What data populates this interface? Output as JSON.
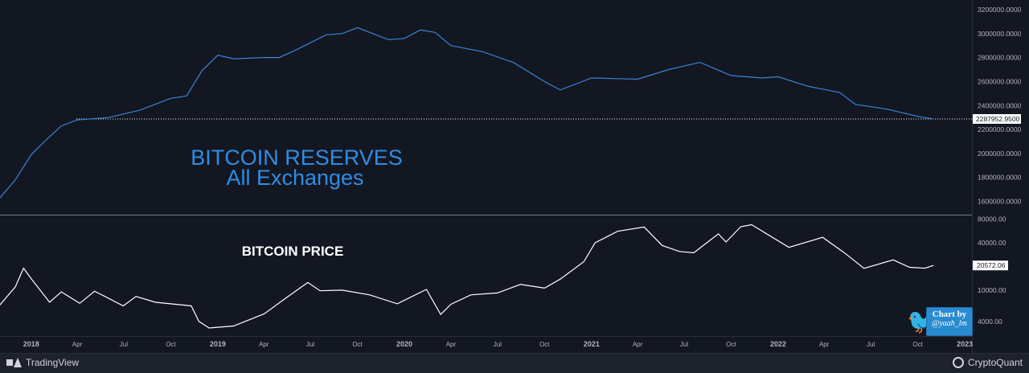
{
  "chart_data": [
    {
      "type": "line",
      "title": "BITCOIN RESERVES",
      "subtitle": "All Exchanges",
      "ylim": [
        1550000,
        3200000
      ],
      "y_ticks": [
        "3200000.0000",
        "3000000.0000",
        "2800000.0000",
        "2600000.0000",
        "2400000.0000",
        "2200000.0000",
        "2000000.0000",
        "1800000.0000",
        "1600000.0000"
      ],
      "last_value_label": "2287952.9500",
      "last_value": 2287952.95,
      "color": "#3b82d6",
      "x": [
        "2017-11-01",
        "2017-12-01",
        "2018-01-01",
        "2018-02-01",
        "2018-03-01",
        "2018-04-01",
        "2018-06-01",
        "2018-08-01",
        "2018-10-01",
        "2018-11-01",
        "2018-12-01",
        "2019-01-01",
        "2019-02-01",
        "2019-04-01",
        "2019-05-01",
        "2019-06-01",
        "2019-08-01",
        "2019-09-01",
        "2019-10-01",
        "2019-12-01",
        "2020-01-01",
        "2020-02-01",
        "2020-03-01",
        "2020-04-01",
        "2020-06-01",
        "2020-08-01",
        "2020-10-01",
        "2020-11-01",
        "2021-01-01",
        "2021-04-01",
        "2021-06-01",
        "2021-08-01",
        "2021-10-01",
        "2021-12-01",
        "2022-01-01",
        "2022-03-01",
        "2022-05-01",
        "2022-06-01",
        "2022-08-01",
        "2022-10-01",
        "2022-11-01"
      ],
      "values": [
        1630000,
        1780000,
        1990000,
        2120000,
        2230000,
        2280000,
        2300000,
        2360000,
        2460000,
        2480000,
        2690000,
        2820000,
        2790000,
        2800000,
        2800000,
        2860000,
        2990000,
        3000000,
        3050000,
        2950000,
        2960000,
        3030000,
        3010000,
        2900000,
        2850000,
        2760000,
        2600000,
        2530000,
        2630000,
        2620000,
        2700000,
        2760000,
        2650000,
        2630000,
        2640000,
        2560000,
        2510000,
        2410000,
        2370000,
        2310000,
        2288000
      ]
    },
    {
      "type": "line",
      "title": "BITCOIN PRICE",
      "y_scale": "log",
      "ylim": [
        3000,
        85000
      ],
      "y_ticks": [
        80000,
        40000,
        10000,
        4000
      ],
      "y_tick_labels": [
        "80000.00",
        "40000.00",
        "10000.00",
        "4000.00"
      ],
      "last_value_label": "20572.06",
      "last_value": 20572.06,
      "color": "#ffffff",
      "x": [
        "2017-11-01",
        "2017-12-01",
        "2017-12-17",
        "2018-01-01",
        "2018-02-06",
        "2018-03-01",
        "2018-04-06",
        "2018-05-05",
        "2018-06-30",
        "2018-07-25",
        "2018-09-01",
        "2018-11-10",
        "2018-11-25",
        "2018-12-15",
        "2019-02-01",
        "2019-04-02",
        "2019-05-15",
        "2019-06-26",
        "2019-07-20",
        "2019-09-01",
        "2019-10-25",
        "2019-12-18",
        "2020-02-13",
        "2020-03-12",
        "2020-04-01",
        "2020-05-10",
        "2020-07-01",
        "2020-08-15",
        "2020-10-01",
        "2020-11-01",
        "2020-12-17",
        "2021-01-08",
        "2021-02-21",
        "2021-04-14",
        "2021-05-19",
        "2021-06-22",
        "2021-07-20",
        "2021-09-06",
        "2021-09-21",
        "2021-10-20",
        "2021-11-10",
        "2022-01-22",
        "2022-03-29",
        "2022-05-10",
        "2022-06-18",
        "2022-08-14",
        "2022-09-15",
        "2022-10-15",
        "2022-11-01"
      ],
      "values": [
        6500,
        11000,
        19000,
        14000,
        7000,
        9500,
        6800,
        9700,
        6300,
        8300,
        7000,
        6300,
        4000,
        3300,
        3500,
        5000,
        8000,
        12500,
        9800,
        10000,
        8700,
        6700,
        10200,
        4900,
        6600,
        8700,
        9200,
        11800,
        10600,
        13800,
        23000,
        40000,
        56000,
        63500,
        37000,
        31000,
        29800,
        52000,
        41000,
        64000,
        68000,
        35000,
        47000,
        30000,
        18900,
        24200,
        19500,
        19000,
        20572
      ]
    }
  ],
  "x_axis_labels": [
    "2018",
    "Apr",
    "Jul",
    "Oct",
    "2019",
    "Apr",
    "Jul",
    "Oct",
    "2020",
    "Apr",
    "Jul",
    "Oct",
    "2021",
    "Apr",
    "Jul",
    "Oct",
    "2022",
    "Apr",
    "Jul",
    "Oct",
    "2023"
  ],
  "x_axis_label_dates": [
    "2018-01-01",
    "2018-04-01",
    "2018-07-01",
    "2018-10-01",
    "2019-01-01",
    "2019-04-01",
    "2019-07-01",
    "2019-10-01",
    "2020-01-01",
    "2020-04-01",
    "2020-07-01",
    "2020-10-01",
    "2021-01-01",
    "2021-04-01",
    "2021-07-01",
    "2021-10-01",
    "2022-01-01",
    "2022-04-01",
    "2022-07-01",
    "2022-10-01",
    "2023-01-01"
  ],
  "x_axis_range": [
    "2017-11-01",
    "2023-01-15"
  ],
  "footer": {
    "left_brand": "TradingView",
    "right_brand": "CryptoQuant"
  },
  "credit": {
    "line1": "Chart by",
    "line2": "@yaah_lm"
  },
  "colors": {
    "background": "#131722",
    "grid_divider": "#787b86",
    "reserves": "#3b82d6",
    "price": "#ffffff",
    "title_blue": "#2f8de4"
  }
}
